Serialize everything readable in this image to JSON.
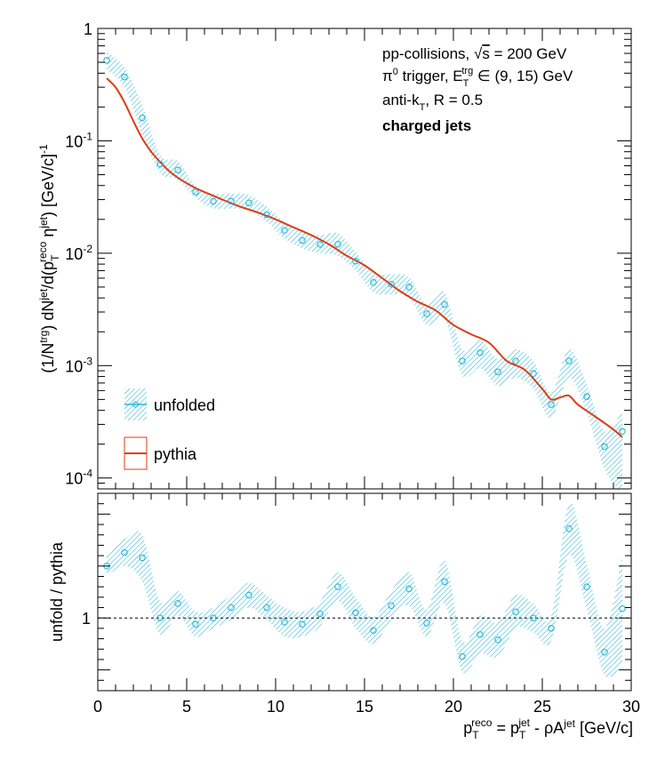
{
  "chart_data": [
    {
      "type": "scatter",
      "panel": "top",
      "title": "",
      "xlabel": "",
      "ylabel_parts": [
        "(1/N",
        "trg",
        ") dN",
        "jet",
        "/d(p",
        "T",
        "reco",
        " η",
        "jet",
        ") [GeV/c]",
        "-1"
      ],
      "yscale": "log",
      "xlim": [
        0,
        30
      ],
      "ylim": [
        8e-05,
        1
      ],
      "ytick_labels": [
        {
          "value": 1,
          "mantissa": "1",
          "exp": ""
        },
        {
          "value": 0.1,
          "mantissa": "10",
          "exp": "-1"
        },
        {
          "value": 0.01,
          "mantissa": "10",
          "exp": "-2"
        },
        {
          "value": 0.001,
          "mantissa": "10",
          "exp": "-3"
        },
        {
          "value": 0.0001,
          "mantissa": "10",
          "exp": "-4"
        }
      ],
      "annotations": [
        {
          "parts": [
            "pp-collisions, ",
            "√",
            "s",
            " = 200 GeV"
          ]
        },
        {
          "parts": [
            "π",
            "0",
            " trigger, E",
            "T",
            "trg",
            " ∈ (9, 15) GeV"
          ]
        },
        {
          "parts": [
            "anti-k",
            "T",
            ", R = 0.5"
          ]
        },
        {
          "parts": [
            "charged jets"
          ],
          "bold": true
        }
      ],
      "legend": {
        "position": "bottom-left",
        "entries": [
          {
            "label": "unfolded",
            "color": "#27b5d9"
          },
          {
            "label": "pythia",
            "color": "#e23b12"
          }
        ]
      },
      "series": [
        {
          "name": "unfolded",
          "color": "#27b5d9",
          "style": "markers-with-band",
          "x": [
            0.5,
            1.5,
            2.5,
            3.5,
            4.5,
            5.5,
            6.5,
            7.5,
            8.5,
            9.5,
            10.5,
            11.5,
            12.5,
            13.5,
            14.5,
            15.5,
            16.5,
            17.5,
            18.5,
            19.5,
            20.5,
            21.5,
            22.5,
            23.5,
            24.5,
            25.5,
            26.5,
            27.5,
            28.5,
            29.5
          ],
          "y": [
            0.52,
            0.37,
            0.16,
            0.062,
            0.055,
            0.035,
            0.029,
            0.029,
            0.028,
            0.022,
            0.016,
            0.013,
            0.012,
            0.012,
            0.0085,
            0.0055,
            0.0053,
            0.005,
            0.0029,
            0.0035,
            0.0011,
            0.0013,
            0.00088,
            0.0011,
            0.00085,
            0.00045,
            0.0011,
            0.00053,
            0.00019,
            0.00026
          ],
          "band_low": [
            0.43,
            0.3,
            0.115,
            0.052,
            0.045,
            0.031,
            0.025,
            0.025,
            0.024,
            0.019,
            0.0135,
            0.011,
            0.01,
            0.0095,
            0.007,
            0.0045,
            0.0043,
            0.0041,
            0.0023,
            0.0026,
            0.00082,
            0.00095,
            0.00066,
            0.00078,
            0.00062,
            0.00034,
            0.00078,
            0.00038,
            0.00012,
            7e-05
          ],
          "band_high": [
            0.62,
            0.45,
            0.21,
            0.075,
            0.066,
            0.04,
            0.034,
            0.034,
            0.033,
            0.026,
            0.019,
            0.0155,
            0.0145,
            0.015,
            0.0103,
            0.0066,
            0.0065,
            0.0061,
            0.0035,
            0.0045,
            0.0014,
            0.0017,
            0.00115,
            0.0014,
            0.0011,
            0.00058,
            0.0014,
            0.00068,
            0.00026,
            0.0004
          ]
        },
        {
          "name": "pythia",
          "color": "#e23b12",
          "style": "line",
          "x": [
            0.5,
            1.0,
            1.5,
            2.0,
            2.5,
            3.0,
            3.5,
            4.0,
            4.5,
            5.0,
            5.5,
            6.0,
            7.0,
            8.0,
            9.0,
            10.0,
            11.0,
            12.0,
            13.0,
            14.0,
            15.0,
            16.0,
            17.0,
            18.0,
            19.0,
            20.0,
            21.0,
            22.0,
            23.0,
            24.0,
            25.0,
            25.5,
            26.0,
            26.5,
            27.0,
            28.0,
            29.0,
            29.5
          ],
          "y": [
            0.36,
            0.3,
            0.22,
            0.15,
            0.105,
            0.08,
            0.065,
            0.054,
            0.047,
            0.042,
            0.038,
            0.035,
            0.03,
            0.026,
            0.023,
            0.02,
            0.017,
            0.0145,
            0.012,
            0.0095,
            0.0078,
            0.006,
            0.0046,
            0.0037,
            0.0031,
            0.0023,
            0.0019,
            0.0016,
            0.0011,
            0.00092,
            0.00062,
            0.0005,
            0.00052,
            0.00054,
            0.00045,
            0.00035,
            0.00027,
            0.00023
          ]
        }
      ]
    },
    {
      "type": "scatter",
      "panel": "bottom",
      "xlabel_parts": [
        "p",
        "T",
        "reco",
        " = p",
        "T",
        "jet",
        " - ρA",
        "jet",
        " [GeV/c]"
      ],
      "ylabel": "unfold / pythia",
      "xlim": [
        0,
        30
      ],
      "ylim": [
        0.3,
        2.2
      ],
      "xticks": [
        0,
        5,
        10,
        15,
        20,
        25,
        30
      ],
      "yticks": [
        1
      ],
      "reference_line": {
        "y": 1,
        "style": "dashed"
      },
      "series": [
        {
          "name": "unfold / pythia",
          "color": "#27b5d9",
          "style": "markers-with-band",
          "x": [
            0.5,
            1.5,
            2.5,
            3.5,
            4.5,
            5.5,
            6.5,
            7.5,
            8.5,
            9.5,
            10.5,
            11.5,
            12.5,
            13.5,
            14.5,
            15.5,
            16.5,
            17.5,
            18.5,
            19.5,
            20.5,
            21.5,
            22.5,
            23.5,
            24.5,
            25.5,
            26.5,
            27.5,
            28.5,
            29.5
          ],
          "y": [
            1.5,
            1.63,
            1.58,
            1.0,
            1.14,
            0.94,
            1.0,
            1.1,
            1.22,
            1.1,
            0.96,
            0.94,
            1.04,
            1.3,
            1.05,
            0.88,
            1.12,
            1.28,
            0.95,
            1.35,
            0.63,
            0.84,
            0.79,
            1.06,
            1.0,
            0.9,
            1.86,
            1.3,
            0.67,
            1.09
          ],
          "band_low": [
            1.4,
            1.5,
            1.35,
            0.84,
            1.02,
            0.82,
            0.9,
            0.98,
            1.1,
            0.98,
            0.82,
            0.82,
            0.92,
            1.16,
            0.9,
            0.75,
            0.98,
            1.12,
            0.82,
            1.14,
            0.48,
            0.66,
            0.62,
            0.9,
            0.86,
            0.78,
            1.6,
            1.08,
            0.45,
            0.55
          ],
          "band_high": [
            1.62,
            1.76,
            1.8,
            1.16,
            1.26,
            1.06,
            1.1,
            1.22,
            1.34,
            1.22,
            1.1,
            1.06,
            1.16,
            1.44,
            1.2,
            1.01,
            1.26,
            1.44,
            1.08,
            1.56,
            0.78,
            1.02,
            0.96,
            1.22,
            1.14,
            1.02,
            2.1,
            1.52,
            0.9,
            1.6
          ]
        }
      ]
    }
  ]
}
